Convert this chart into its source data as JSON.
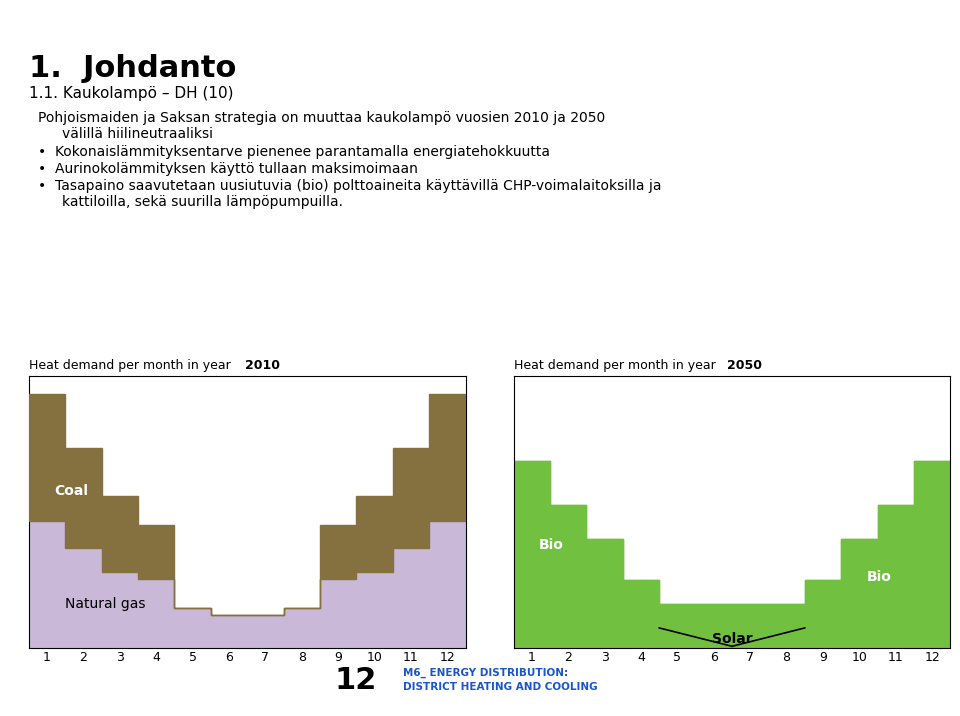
{
  "title_main": "1.  Johdanto",
  "subtitle": "1.1. Kaukolampö – DH (10)",
  "chart_left_title": "Heat demand per month in year",
  "chart_left_year": "2010",
  "chart_right_title": "Heat demand per month in year",
  "chart_right_year": "2050",
  "months": [
    1,
    2,
    3,
    4,
    5,
    6,
    7,
    8,
    9,
    10,
    11,
    12
  ],
  "coal_2010": [
    7.0,
    5.5,
    4.2,
    3.0,
    0.0,
    0.0,
    0.0,
    0.0,
    3.0,
    4.2,
    5.5,
    7.0
  ],
  "natural_gas_2010": [
    7.0,
    5.5,
    4.2,
    3.8,
    2.2,
    1.8,
    1.8,
    2.2,
    3.8,
    4.2,
    5.5,
    7.0
  ],
  "bio_2050": [
    5.5,
    4.2,
    3.2,
    2.0,
    0.8,
    0.5,
    0.5,
    0.8,
    2.0,
    3.2,
    4.2,
    5.5
  ],
  "solar_2050": [
    0.0,
    0.0,
    0.0,
    0.0,
    0.5,
    0.8,
    0.8,
    0.5,
    0.0,
    0.0,
    0.0,
    0.0
  ],
  "color_coal": "#857040",
  "color_natural_gas": "#C9B8D8",
  "color_bio": "#72C040",
  "color_solar": "#72C040",
  "color_header_blue": "#1a3a8c",
  "color_footer_blue": "#1a3a8c",
  "footer_num": "12",
  "footer_text1": "M6_ ENERGY DISTRIBUTION:",
  "footer_text2": "DISTRICT HEATING AND COOLING"
}
